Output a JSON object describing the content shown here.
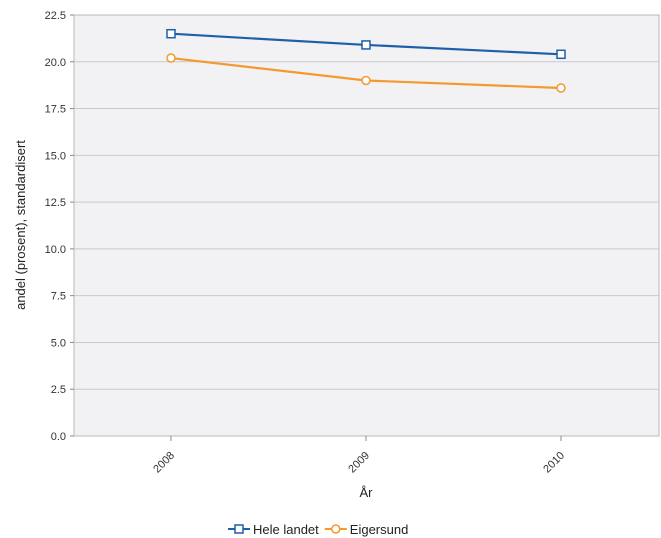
{
  "chart_data": {
    "type": "line",
    "categories": [
      "2008",
      "2009",
      "2010"
    ],
    "series": [
      {
        "name": "Hele landet",
        "values": [
          21.5,
          20.9,
          20.4
        ],
        "color": "#1f5fa8",
        "marker": "square"
      },
      {
        "name": "Eigersund",
        "values": [
          20.2,
          19.0,
          18.6
        ],
        "color": "#f39a2e",
        "marker": "circle"
      }
    ],
    "xlabel": "År",
    "ylabel": "andel (prosent), standardisert",
    "ylim": [
      0,
      22.5
    ],
    "yticks": [
      "0.0",
      "2.5",
      "5.0",
      "7.5",
      "10.0",
      "12.5",
      "15.0",
      "17.5",
      "20.0",
      "22.5"
    ],
    "grid": true,
    "legend_position": "bottom",
    "plot_background": "#f2f2f4"
  }
}
